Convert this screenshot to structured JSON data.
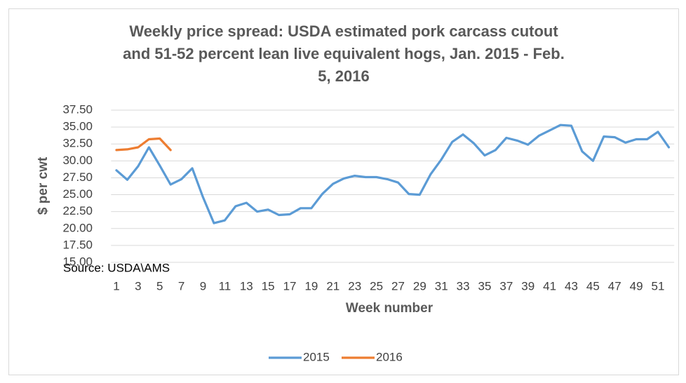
{
  "chart_data": {
    "type": "line",
    "title": [
      "Weekly price spread: USDA estimated pork carcass cutout",
      "and 51-52 percent lean live equivalent hogs, Jan. 2015 - Feb.",
      "5, 2016"
    ],
    "x_label": "Week number",
    "y_label": "$ per cwt",
    "source": "Source: USDA\\AMS",
    "categories": [
      1,
      null,
      3,
      null,
      5,
      null,
      7,
      null,
      9,
      null,
      11,
      null,
      13,
      null,
      15,
      null,
      17,
      null,
      19,
      null,
      21,
      null,
      23,
      null,
      25,
      null,
      27,
      null,
      29,
      null,
      31,
      null,
      33,
      null,
      35,
      null,
      37,
      null,
      39,
      null,
      41,
      null,
      43,
      null,
      45,
      null,
      47,
      null,
      49,
      null,
      51,
      null
    ],
    "series": [
      {
        "name": "2015",
        "color": "#5b9bd5",
        "values": [
          28.6,
          27.2,
          29.2,
          32.0,
          29.3,
          26.5,
          27.3,
          28.9,
          24.6,
          20.8,
          21.2,
          23.3,
          23.8,
          22.5,
          22.8,
          22.0,
          22.1,
          23.0,
          23.0,
          25.1,
          26.6,
          27.4,
          27.8,
          27.6,
          27.6,
          27.3,
          26.8,
          25.1,
          25.0,
          28.0,
          30.2,
          32.8,
          33.9,
          32.6,
          30.8,
          31.6,
          33.4,
          33.0,
          32.4,
          33.7,
          34.5,
          35.3,
          35.2,
          31.4,
          30.0,
          33.6,
          33.5,
          32.7,
          33.2,
          33.2,
          34.3,
          32.0
        ]
      },
      {
        "name": "2016",
        "color": "#ed7d31",
        "values": [
          31.6,
          31.7,
          32.0,
          33.2,
          33.3,
          31.6,
          null,
          null,
          null,
          null,
          null,
          null,
          null,
          null,
          null,
          null,
          null,
          null,
          null,
          null,
          null,
          null,
          null,
          null,
          null,
          null,
          null,
          null,
          null,
          null,
          null,
          null,
          null,
          null,
          null,
          null,
          null,
          null,
          null,
          null,
          null,
          null,
          null,
          null,
          null,
          null,
          null,
          null,
          null,
          null,
          null,
          null
        ]
      }
    ],
    "ylim": [
      15,
      37.5
    ],
    "yticks": [
      {
        "value": 15,
        "label": "15.00"
      },
      {
        "value": 17.5,
        "label": "17.50"
      },
      {
        "value": 20,
        "label": "20.00"
      },
      {
        "value": 22.5,
        "label": "22.50"
      },
      {
        "value": 25,
        "label": "25.00"
      },
      {
        "value": 27.5,
        "label": "27.50"
      },
      {
        "value": 30,
        "label": "30.00"
      },
      {
        "value": 32.5,
        "label": "32.50"
      },
      {
        "value": 35,
        "label": "35.00"
      },
      {
        "value": 37.5,
        "label": "37.50"
      }
    ],
    "grid": true,
    "legend": "bottom"
  }
}
